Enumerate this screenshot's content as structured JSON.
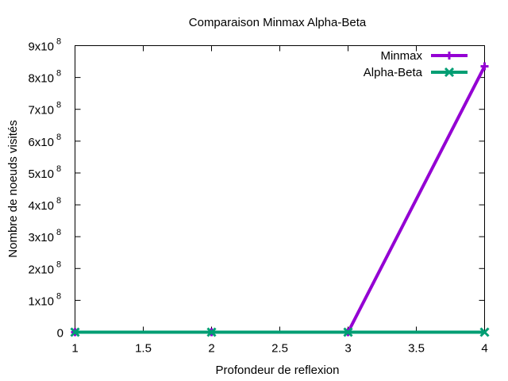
{
  "chart_data": {
    "type": "line",
    "title": "Comparaison Minmax Alpha-Beta",
    "xlabel": "Profondeur de reflexion",
    "ylabel": "Nombre de noeuds visités",
    "xlim": [
      1,
      4
    ],
    "ylim": [
      0,
      900000000
    ],
    "grid": false,
    "legend_position": "top-right",
    "x_ticks": [
      {
        "value": 1,
        "label": "1"
      },
      {
        "value": 1.5,
        "label": "1.5"
      },
      {
        "value": 2,
        "label": "2"
      },
      {
        "value": 2.5,
        "label": "2.5"
      },
      {
        "value": 3,
        "label": "3"
      },
      {
        "value": 3.5,
        "label": "3.5"
      },
      {
        "value": 4,
        "label": "4"
      }
    ],
    "y_ticks": [
      {
        "value": 0,
        "mantissa": "0",
        "exponent": ""
      },
      {
        "value": 100000000,
        "mantissa": "1x10",
        "exponent": "8"
      },
      {
        "value": 200000000,
        "mantissa": "2x10",
        "exponent": "8"
      },
      {
        "value": 300000000,
        "mantissa": "3x10",
        "exponent": "8"
      },
      {
        "value": 400000000,
        "mantissa": "4x10",
        "exponent": "8"
      },
      {
        "value": 500000000,
        "mantissa": "5x10",
        "exponent": "8"
      },
      {
        "value": 600000000,
        "mantissa": "6x10",
        "exponent": "8"
      },
      {
        "value": 700000000,
        "mantissa": "7x10",
        "exponent": "8"
      },
      {
        "value": 800000000,
        "mantissa": "8x10",
        "exponent": "8"
      },
      {
        "value": 900000000,
        "mantissa": "9x10",
        "exponent": "8"
      }
    ],
    "series": [
      {
        "name": "Minmax",
        "color": "#9400d3",
        "marker": "plus",
        "x": [
          1,
          2,
          3,
          4
        ],
        "values": [
          0,
          0,
          0,
          835000000
        ]
      },
      {
        "name": "Alpha-Beta",
        "color": "#009e73",
        "marker": "cross",
        "x": [
          1,
          2,
          3,
          4
        ],
        "values": [
          0,
          0,
          0,
          0
        ]
      }
    ]
  }
}
